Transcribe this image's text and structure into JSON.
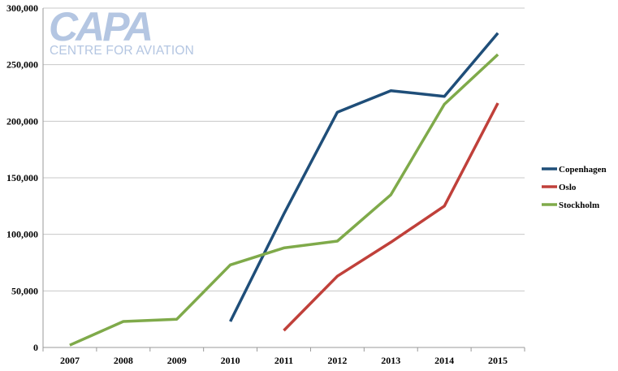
{
  "logo": {
    "name": "CAPA",
    "tagline": "CENTRE FOR AVIATION"
  },
  "chart_data": {
    "type": "line",
    "title": "",
    "xlabel": "",
    "ylabel": "",
    "categories": [
      "2007",
      "2008",
      "2009",
      "2010",
      "2011",
      "2012",
      "2013",
      "2014",
      "2015"
    ],
    "ylim": [
      0,
      300000
    ],
    "yticks": [
      0,
      50000,
      100000,
      150000,
      200000,
      250000,
      300000
    ],
    "ytick_labels": [
      "0",
      "50,000",
      "100,000",
      "150,000",
      "200,000",
      "250,000",
      "300,000"
    ],
    "grid": true,
    "legend_position": "right",
    "series": [
      {
        "name": "Copenhagen",
        "color": "#1f4e79",
        "values": [
          null,
          null,
          null,
          23000,
          118000,
          208000,
          227000,
          222000,
          278000
        ]
      },
      {
        "name": "Oslo",
        "color": "#c0403a",
        "values": [
          null,
          null,
          null,
          null,
          15000,
          63000,
          93000,
          125000,
          216000
        ]
      },
      {
        "name": "Stockholm",
        "color": "#7faa4a",
        "values": [
          2000,
          23000,
          25000,
          73000,
          88000,
          94000,
          135000,
          215000,
          259000
        ]
      }
    ]
  }
}
